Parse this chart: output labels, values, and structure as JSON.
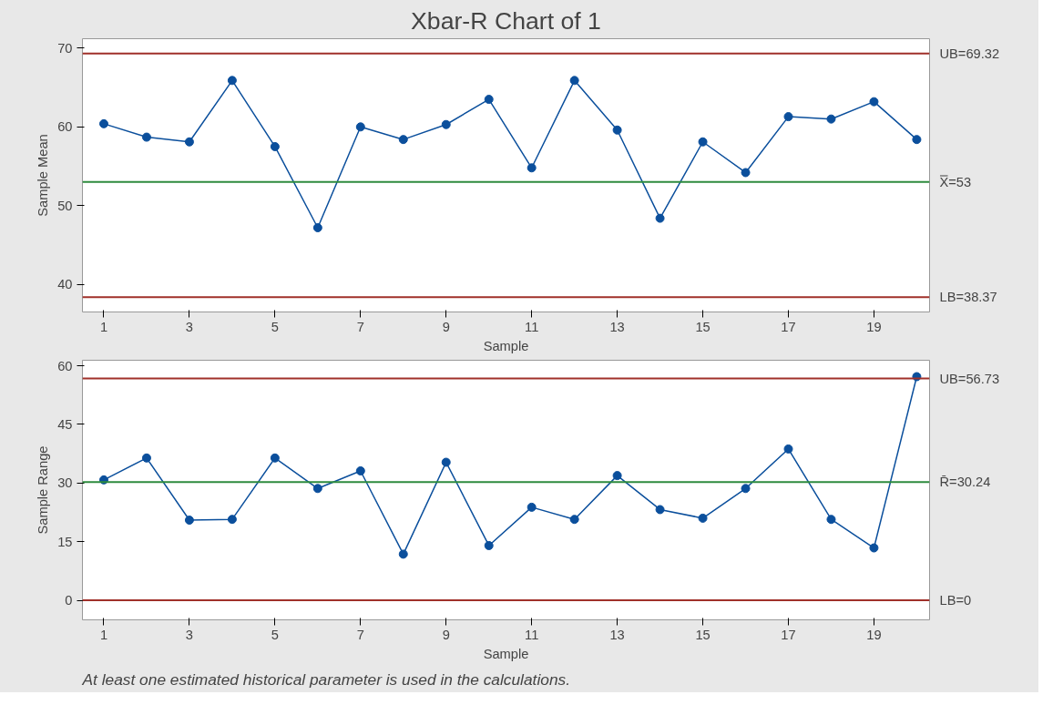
{
  "chart_data": [
    {
      "type": "line",
      "title": "Xbar-R Chart of 1",
      "xlabel": "Sample",
      "ylabel": "Sample Mean",
      "x": [
        1,
        2,
        3,
        4,
        5,
        6,
        7,
        8,
        9,
        10,
        11,
        12,
        13,
        14,
        15,
        16,
        17,
        18,
        19,
        20
      ],
      "series": [
        {
          "color": "#0b4f9c",
          "values": [
            60.4,
            58.7,
            58.1,
            65.9,
            57.5,
            47.2,
            60.0,
            58.4,
            60.3,
            63.5,
            54.8,
            65.9,
            59.6,
            48.4,
            58.1,
            54.2,
            61.3,
            61.0,
            63.2,
            58.4
          ]
        }
      ],
      "marker": "circle",
      "line_style": "solid",
      "grid": false,
      "xlim": [
        0.5,
        20.3
      ],
      "ylim": [
        36.5,
        71.2
      ],
      "xticks": [
        1,
        3,
        5,
        7,
        9,
        11,
        13,
        15,
        17,
        19
      ],
      "yticks": [
        40,
        50,
        60,
        70
      ],
      "ref_lines": [
        {
          "axis": "y",
          "value": 69.32,
          "label": "UB=69.32",
          "color": "#a0302a"
        },
        {
          "axis": "y",
          "value": 53,
          "label": "X̿=53",
          "color": "#2e8b3e"
        },
        {
          "axis": "y",
          "value": 38.37,
          "label": "LB=38.37",
          "color": "#a0302a"
        }
      ]
    },
    {
      "type": "line",
      "xlabel": "Sample",
      "ylabel": "Sample Range",
      "x": [
        1,
        2,
        3,
        4,
        5,
        6,
        7,
        8,
        9,
        10,
        11,
        12,
        13,
        14,
        15,
        16,
        17,
        18,
        19,
        20
      ],
      "series": [
        {
          "color": "#0b4f9c",
          "values": [
            30.8,
            36.4,
            20.5,
            20.7,
            36.4,
            28.6,
            33.1,
            11.8,
            35.3,
            14.0,
            23.8,
            20.7,
            31.9,
            23.2,
            21.0,
            28.6,
            38.7,
            20.7,
            13.4,
            57.2
          ]
        }
      ],
      "marker": "circle",
      "line_style": "solid",
      "grid": false,
      "xlim": [
        0.5,
        20.3
      ],
      "ylim": [
        -5,
        61.4
      ],
      "xticks": [
        1,
        3,
        5,
        7,
        9,
        11,
        13,
        15,
        17,
        19
      ],
      "yticks": [
        0,
        15,
        30,
        45,
        60
      ],
      "ref_lines": [
        {
          "axis": "y",
          "value": 56.73,
          "label": "UB=56.73",
          "color": "#a0302a"
        },
        {
          "axis": "y",
          "value": 30.24,
          "label": "R̄=30.24",
          "color": "#2e8b3e"
        },
        {
          "axis": "y",
          "value": 0,
          "label": "LB=0",
          "color": "#a0302a"
        }
      ],
      "annotations": [
        "At least one estimated historical parameter is used in the calculations."
      ]
    }
  ]
}
